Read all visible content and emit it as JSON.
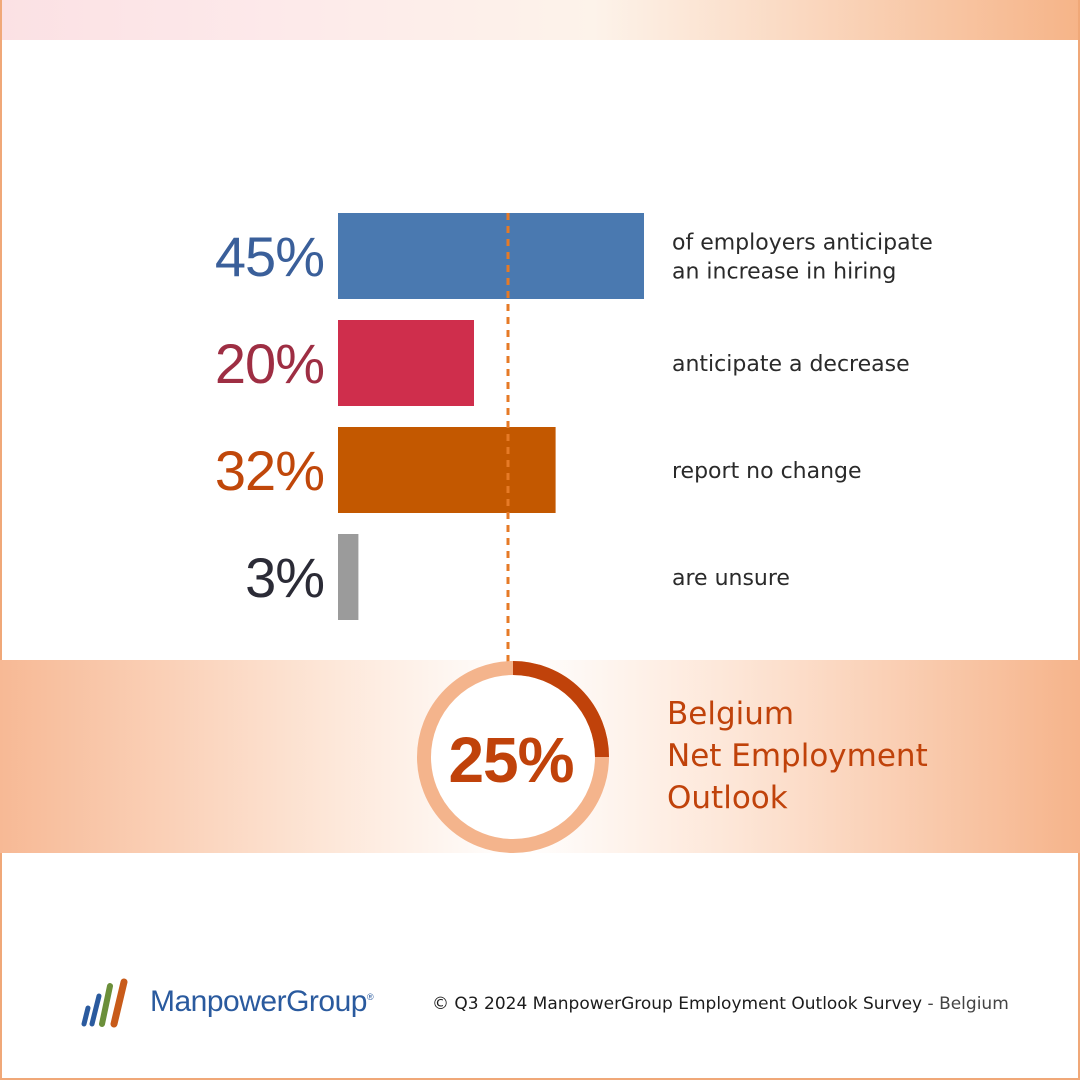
{
  "chart_data": {
    "type": "bar",
    "orientation": "horizontal",
    "categories": [
      "of employers anticipate an increase in hiring",
      "anticipate a decrease",
      "report no change",
      "are unsure"
    ],
    "description_lines": [
      [
        "of employers anticipate",
        "an increase in hiring"
      ],
      [
        "anticipate a decrease"
      ],
      [
        "report no change"
      ],
      [
        "are unsure"
      ]
    ],
    "values": [
      45,
      20,
      32,
      3
    ],
    "value_labels": [
      "45%",
      "20%",
      "32%",
      "3%"
    ],
    "colors": [
      "#4a79b0",
      "#cf2e4c",
      "#c35800",
      "#9b9b9b"
    ],
    "label_colors": [
      "#3a5f9a",
      "#9e2e43",
      "#c0470a",
      "#2b2b36"
    ],
    "xlim": [
      0,
      45
    ],
    "reference_line": {
      "value": 25,
      "style": "dashed",
      "color": "#e67a26"
    },
    "grid": false,
    "net_employment_outlook": {
      "value": 25,
      "label": "25%",
      "title_lines": [
        "Belgium",
        "Net Employment",
        "Outlook"
      ]
    }
  },
  "colors": {
    "accent_orange": "#c0420a",
    "ring_light": "#f4b48c",
    "ring_dark": "#c0420a"
  },
  "footer": {
    "logo_name": "ManpowerGroup",
    "logo_mark": "®",
    "credit_main": "© Q3 2024 ManpowerGroup Employment Outlook Survey",
    "credit_separator": " - ",
    "credit_location": "Belgium"
  }
}
